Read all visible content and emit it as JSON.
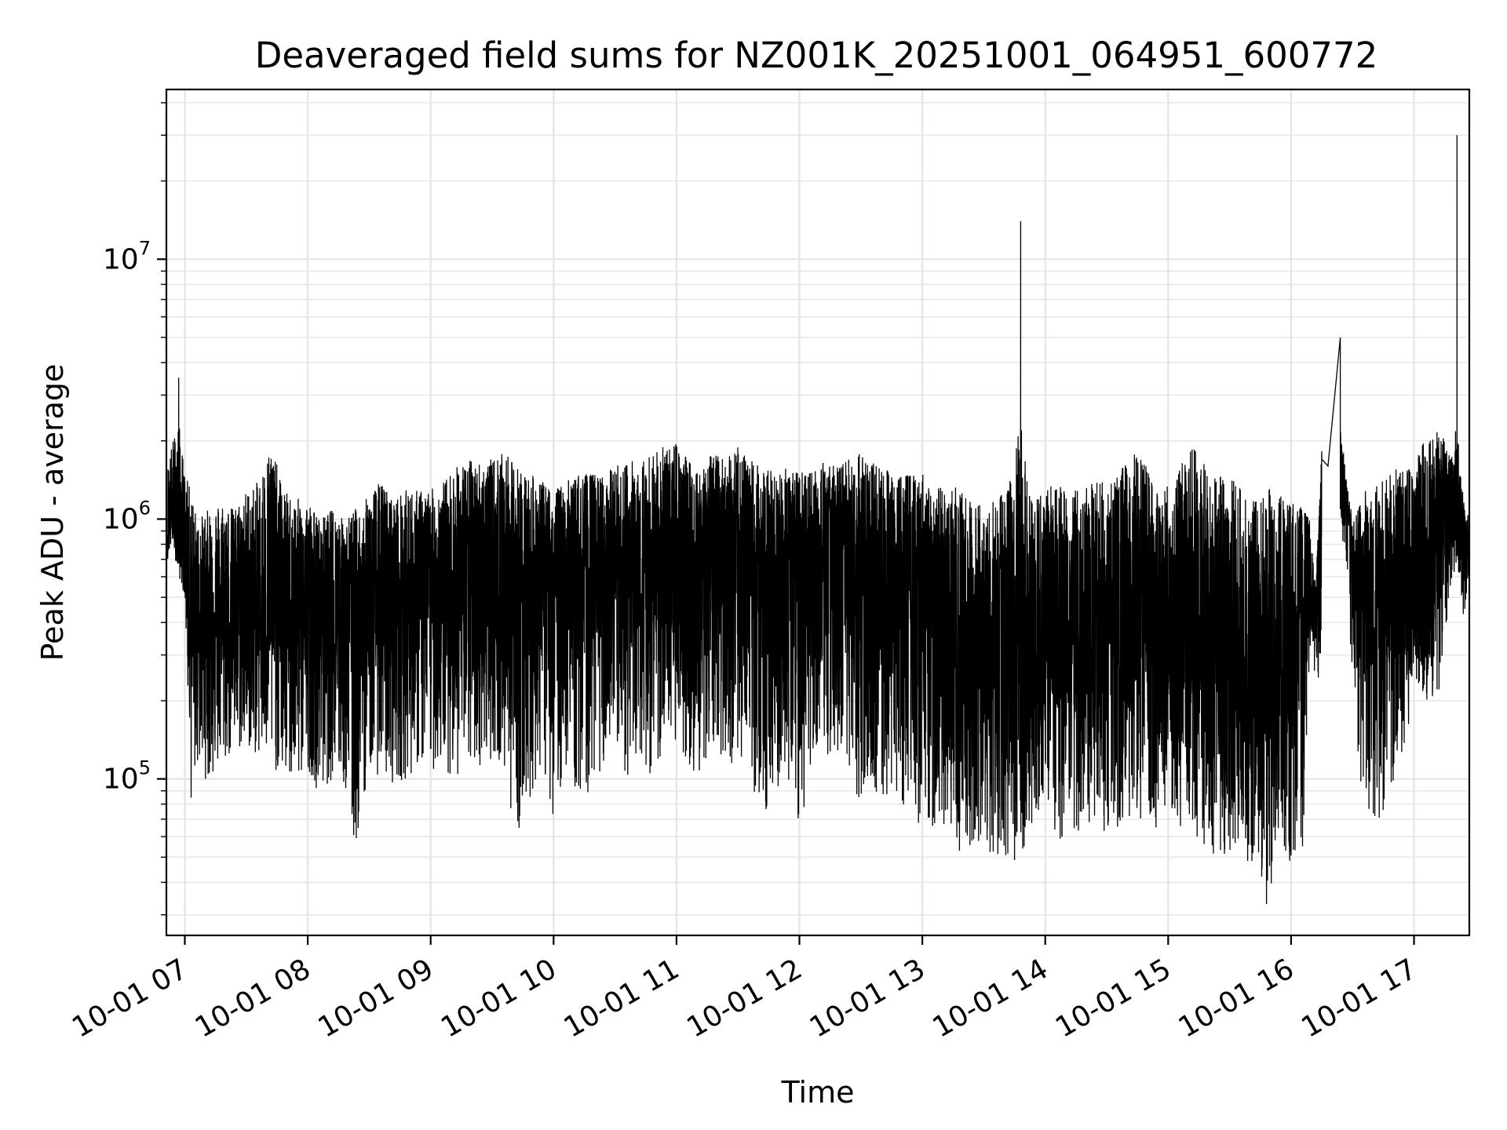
{
  "chart_data": {
    "type": "line",
    "title": "Deaveraged field sums for NZ001K_20251001_064951_600772",
    "xlabel": "Time",
    "ylabel": "Peak ADU - average",
    "yscale": "log",
    "grid": true,
    "xlim_hours": [
      6.85,
      17.45
    ],
    "ylim": [
      25000,
      45000000
    ],
    "x_ticks": [
      {
        "hour": 7,
        "label": "10-01 07"
      },
      {
        "hour": 8,
        "label": "10-01 08"
      },
      {
        "hour": 9,
        "label": "10-01 09"
      },
      {
        "hour": 10,
        "label": "10-01 10"
      },
      {
        "hour": 11,
        "label": "10-01 11"
      },
      {
        "hour": 12,
        "label": "10-01 12"
      },
      {
        "hour": 13,
        "label": "10-01 13"
      },
      {
        "hour": 14,
        "label": "10-01 14"
      },
      {
        "hour": 15,
        "label": "10-01 15"
      },
      {
        "hour": 16,
        "label": "10-01 16"
      },
      {
        "hour": 17,
        "label": "10-01 17"
      }
    ],
    "y_ticks": [
      {
        "value": 100000,
        "base": "10",
        "exp": "5"
      },
      {
        "value": 1000000,
        "base": "10",
        "exp": "6"
      },
      {
        "value": 10000000,
        "base": "10",
        "exp": "7"
      }
    ],
    "series": [
      {
        "name": "Peak ADU - average",
        "color": "#000000",
        "x_hours": [
          6.86,
          6.9,
          6.95,
          7.0,
          7.05,
          7.1,
          7.2,
          7.3,
          7.4,
          7.5,
          7.6,
          7.7,
          7.8,
          7.9,
          8.0,
          8.1,
          8.2,
          8.3,
          8.38,
          8.45,
          8.5,
          8.6,
          8.7,
          8.8,
          8.9,
          9.0,
          9.1,
          9.2,
          9.3,
          9.4,
          9.5,
          9.6,
          9.7,
          9.8,
          9.9,
          10.0,
          10.1,
          10.2,
          10.3,
          10.4,
          10.5,
          10.6,
          10.7,
          10.8,
          10.9,
          11.0,
          11.1,
          11.2,
          11.3,
          11.4,
          11.5,
          11.6,
          11.7,
          11.8,
          11.9,
          12.0,
          12.1,
          12.2,
          12.3,
          12.4,
          12.5,
          12.6,
          12.7,
          12.8,
          12.9,
          13.0,
          13.1,
          13.2,
          13.3,
          13.4,
          13.5,
          13.6,
          13.7,
          13.8,
          13.9,
          14.0,
          14.1,
          14.2,
          14.3,
          14.4,
          14.5,
          14.6,
          14.7,
          14.8,
          14.9,
          15.0,
          15.1,
          15.2,
          15.3,
          15.4,
          15.5,
          15.6,
          15.7,
          15.8,
          15.9,
          16.0,
          16.1,
          16.15,
          16.2,
          16.25,
          16.3,
          16.4,
          16.45,
          16.5,
          16.6,
          16.7,
          16.8,
          16.9,
          17.0,
          17.1,
          17.2,
          17.3,
          17.35,
          17.4,
          17.45
        ],
        "y_median": [
          900000,
          1000000,
          800000,
          700000,
          450000,
          400000,
          420000,
          380000,
          420000,
          380000,
          400000,
          420000,
          430000,
          380000,
          400000,
          380000,
          420000,
          400000,
          350000,
          380000,
          400000,
          420000,
          400000,
          420000,
          450000,
          480000,
          500000,
          480000,
          520000,
          500000,
          520000,
          500000,
          480000,
          500000,
          520000,
          550000,
          500000,
          520000,
          480000,
          500000,
          520000,
          550000,
          520000,
          550000,
          580000,
          600000,
          580000,
          600000,
          580000,
          600000,
          580000,
          550000,
          520000,
          550000,
          580000,
          600000,
          620000,
          600000,
          580000,
          550000,
          520000,
          480000,
          500000,
          520000,
          500000,
          480000,
          350000,
          300000,
          280000,
          260000,
          280000,
          250000,
          260000,
          280000,
          300000,
          320000,
          340000,
          350000,
          330000,
          340000,
          350000,
          340000,
          330000,
          320000,
          310000,
          300000,
          290000,
          280000,
          270000,
          260000,
          240000,
          200000,
          180000,
          170000,
          180000,
          200000,
          380000,
          400000,
          380000,
          1700000,
          1600000,
          1500000,
          1200000,
          700000,
          420000,
          380000,
          420000,
          450000,
          450000,
          500000,
          800000,
          900000,
          850000,
          850000,
          700000
        ],
        "y_low": [
          700000,
          800000,
          600000,
          500000,
          80000,
          110000,
          95000,
          110000,
          120000,
          130000,
          120000,
          110000,
          100000,
          90000,
          110000,
          85000,
          100000,
          90000,
          48000,
          80000,
          110000,
          100000,
          95000,
          100000,
          110000,
          105000,
          110000,
          100000,
          105000,
          110000,
          120000,
          100000,
          60000,
          80000,
          110000,
          70000,
          110000,
          80000,
          90000,
          110000,
          95000,
          100000,
          120000,
          100000,
          110000,
          140000,
          110000,
          100000,
          130000,
          120000,
          110000,
          90000,
          70000,
          90000,
          95000,
          60000,
          100000,
          110000,
          90000,
          80000,
          75000,
          90000,
          80000,
          75000,
          80000,
          55000,
          60000,
          55000,
          52000,
          55000,
          52000,
          50000,
          45000,
          50000,
          60000,
          70000,
          60000,
          55000,
          65000,
          70000,
          60000,
          65000,
          70000,
          65000,
          60000,
          70000,
          65000,
          60000,
          55000,
          50000,
          48000,
          45000,
          45000,
          33000,
          50000,
          45000,
          55000,
          300000,
          250000,
          210000,
          1500000,
          900000,
          500000,
          180000,
          70000,
          65000,
          85000,
          90000,
          250000,
          200000,
          200000,
          550000,
          700000,
          420000,
          550000
        ],
        "y_high": [
          1600000,
          2000000,
          3500000,
          1500000,
          1300000,
          1000000,
          1100000,
          1200000,
          1100000,
          1300000,
          1400000,
          2000000,
          1300000,
          1200000,
          1200000,
          1000000,
          1100000,
          1000000,
          1100000,
          1100000,
          1300000,
          1400000,
          1200000,
          1300000,
          1300000,
          1300000,
          1400000,
          1600000,
          1700000,
          1700000,
          1700000,
          1800000,
          1600000,
          1500000,
          1400000,
          1300000,
          1400000,
          1500000,
          1500000,
          1500000,
          1600000,
          1700000,
          1700000,
          1800000,
          1900000,
          2000000,
          1700000,
          1600000,
          1800000,
          1700000,
          1900000,
          1700000,
          1600000,
          1500000,
          1600000,
          1500000,
          1600000,
          1700000,
          1600000,
          1700000,
          1800000,
          1700000,
          1600000,
          1500000,
          1500000,
          1500000,
          1400000,
          1300000,
          1400000,
          1200000,
          1100000,
          1200000,
          1300000,
          14000000,
          1200000,
          1300000,
          1400000,
          1300000,
          1300000,
          1400000,
          1400000,
          1500000,
          1800000,
          1700000,
          1300000,
          1400000,
          1600000,
          1900000,
          1700000,
          1500000,
          1500000,
          1300000,
          1200000,
          1400000,
          1300000,
          1200000,
          1100000,
          1000000,
          550000,
          1900000,
          1800000,
          5000000,
          1400000,
          1000000,
          1300000,
          1400000,
          1500000,
          1600000,
          1600000,
          2200000,
          2300000,
          1700000,
          30000000,
          1200000,
          1000000
        ],
        "note": "Dense noisy time series (thousands of samples); per-segment median/low/high envelope read from the plot. Notable spikes: ~1.4e7 near 13:53, ~5e6 near 16:22, ~3.1e7 near 17:15; minimum ~3.4e4 near 15:47; data gap 16:15–16:30 shown as straight segment."
      }
    ]
  }
}
